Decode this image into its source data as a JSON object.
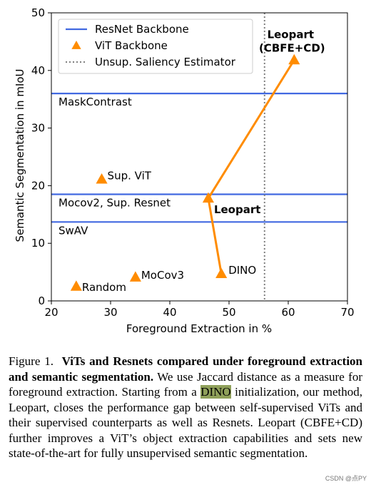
{
  "chart_data": {
    "type": "scatter",
    "title": "",
    "xlabel": "Foreground Extraction in %",
    "ylabel": "Semantic Segmentation in mIoU",
    "xlim": [
      20,
      70
    ],
    "ylim": [
      0,
      50
    ],
    "xticks": [
      "20",
      "30",
      "40",
      "50",
      "60",
      "70"
    ],
    "yticks": [
      "0",
      "10",
      "20",
      "30",
      "40",
      "50"
    ],
    "grid": false,
    "legend_position": "top-left",
    "legend": [
      {
        "label": "ResNet Backbone",
        "style": "line",
        "color": "#4169e1"
      },
      {
        "label": "ViT Backbone",
        "style": "triangle",
        "color": "#ff8c00"
      },
      {
        "label": "Unsup. Saliency Estimator",
        "style": "dotted",
        "color": "#808080"
      }
    ],
    "hlines": [
      {
        "y": 36,
        "label": "MaskContrast",
        "color": "#4169e1"
      },
      {
        "y": 18.5,
        "label": "Mocov2, Sup. Resnet",
        "color": "#4169e1"
      },
      {
        "y": 13.7,
        "label": "SwAV",
        "color": "#4169e1"
      }
    ],
    "vlines": [
      {
        "x": 56,
        "label": "",
        "color": "#808080",
        "style": "dotted"
      }
    ],
    "points": [
      {
        "name": "Random",
        "x": 24.2,
        "y": 2.5,
        "bold": false
      },
      {
        "name": "Sup. ViT",
        "x": 28.5,
        "y": 21.1,
        "bold": false
      },
      {
        "name": "MoCov3",
        "x": 34.2,
        "y": 4.1,
        "bold": false
      },
      {
        "name": "DINO",
        "x": 48.7,
        "y": 4.7,
        "bold": false
      },
      {
        "name": "Leopart",
        "x": 46.5,
        "y": 17.8,
        "bold": true
      },
      {
        "name": "Leopart",
        "name2": "(CBFE+CD)",
        "x": 61.0,
        "y": 41.8,
        "bold": true
      }
    ],
    "connection": {
      "points": [
        [
          48.7,
          4.7
        ],
        [
          46.5,
          17.8
        ],
        [
          61.0,
          41.8
        ]
      ],
      "color": "#ff8c00"
    }
  },
  "caption": {
    "prefix": "Figure 1.",
    "bold": "ViTs and Resnets compared under foreground extraction and semantic segmentation.",
    "text1": "We use Jaccard distance as a measure for foreground extraction. Starting from a",
    "highlight": "DINO",
    "text2": "initialization, our method, Leopart, closes the performance gap between self-supervised ViTs and their supervised counterparts as well as Resnets. Leopart (CBFE+CD) further improves a ViT’s object extraction capabilities and sets new state-of-the-art for fully unsupervised semantic segmentation."
  },
  "watermark": "CSDN @点PY"
}
